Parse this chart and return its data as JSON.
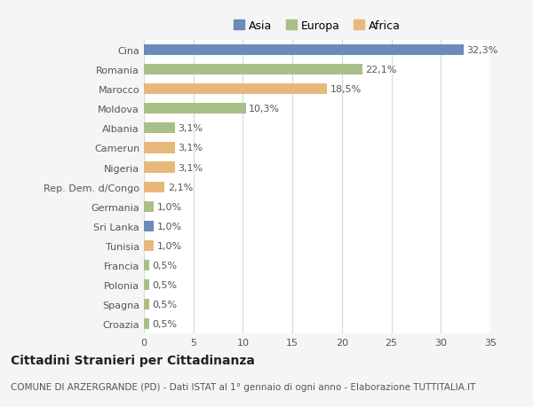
{
  "categories": [
    "Cina",
    "Romania",
    "Marocco",
    "Moldova",
    "Albania",
    "Camerun",
    "Nigeria",
    "Rep. Dem. d/Congo",
    "Germania",
    "Sri Lanka",
    "Tunisia",
    "Francia",
    "Polonia",
    "Spagna",
    "Croazia"
  ],
  "values": [
    32.3,
    22.1,
    18.5,
    10.3,
    3.1,
    3.1,
    3.1,
    2.1,
    1.0,
    1.0,
    1.0,
    0.5,
    0.5,
    0.5,
    0.5
  ],
  "labels": [
    "32,3%",
    "22,1%",
    "18,5%",
    "10,3%",
    "3,1%",
    "3,1%",
    "3,1%",
    "2,1%",
    "1,0%",
    "1,0%",
    "1,0%",
    "0,5%",
    "0,5%",
    "0,5%",
    "0,5%"
  ],
  "continents": [
    "Asia",
    "Europa",
    "Africa",
    "Europa",
    "Europa",
    "Africa",
    "Africa",
    "Africa",
    "Europa",
    "Asia",
    "Africa",
    "Europa",
    "Europa",
    "Europa",
    "Europa"
  ],
  "colors": {
    "Asia": "#6b8cba",
    "Europa": "#a8bf87",
    "Africa": "#e8b87a"
  },
  "xlim": [
    0,
    35
  ],
  "xticks": [
    0,
    5,
    10,
    15,
    20,
    25,
    30,
    35
  ],
  "title": "Cittadini Stranieri per Cittadinanza",
  "subtitle": "COMUNE DI ARZERGRANDE (PD) - Dati ISTAT al 1° gennaio di ogni anno - Elaborazione TUTTITALIA.IT",
  "background_color": "#f5f5f5",
  "bar_background": "#ffffff",
  "grid_color": "#d8d8d8",
  "text_color": "#555555",
  "label_fontsize": 8,
  "tick_fontsize": 8,
  "title_fontsize": 10,
  "subtitle_fontsize": 7.5
}
